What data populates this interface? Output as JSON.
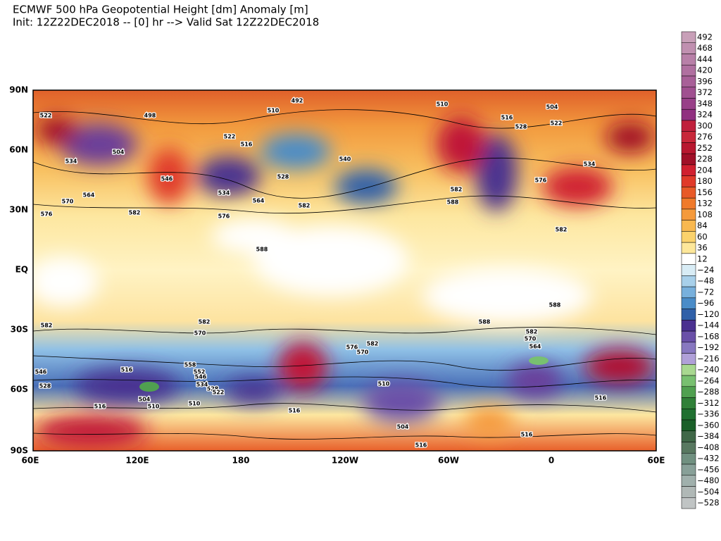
{
  "header": {
    "title": "ECMWF 500 hPa Geopotential Height [dm] Anomaly [m]",
    "subtitle": "Init: 12Z22DEC2018 -- [0] hr --> Valid Sat 12Z22DEC2018"
  },
  "map": {
    "lat_labels": [
      "90N",
      "60N",
      "30N",
      "EQ",
      "30S",
      "60S",
      "90S"
    ],
    "lon_labels": [
      "60E",
      "120E",
      "180",
      "120W",
      "60W",
      "0",
      "60E"
    ],
    "contour_labels": [
      "492",
      "510",
      "510",
      "504",
      "522",
      "516",
      "528",
      "498",
      "522",
      "522",
      "516",
      "528",
      "540",
      "534",
      "564",
      "582",
      "576",
      "582",
      "570",
      "564",
      "576",
      "534",
      "504",
      "546",
      "582",
      "588",
      "576",
      "534",
      "582",
      "588",
      "588",
      "588",
      "582",
      "570",
      "582",
      "576",
      "570",
      "516",
      "510",
      "528",
      "522",
      "504",
      "510",
      "510",
      "516",
      "516",
      "504",
      "516",
      "516",
      "516",
      "528",
      "546",
      "582",
      "582",
      "570",
      "564",
      "558",
      "552",
      "546",
      "534"
    ]
  },
  "colorbar": {
    "labels": [
      "492",
      "468",
      "444",
      "420",
      "396",
      "372",
      "348",
      "324",
      "300",
      "276",
      "252",
      "228",
      "204",
      "180",
      "156",
      "132",
      "108",
      "84",
      "60",
      "36",
      "12",
      "−24",
      "−48",
      "−72",
      "−96",
      "−120",
      "−144",
      "−168",
      "−192",
      "−216",
      "−240",
      "−264",
      "−288",
      "−312",
      "−336",
      "−360",
      "−384",
      "−408",
      "−432",
      "−456",
      "−480",
      "−504",
      "−528"
    ],
    "colors": [
      "#c8a0b8",
      "#c090b0",
      "#b880a8",
      "#b070a0",
      "#a86098",
      "#a05090",
      "#984088",
      "#903080",
      "#c0203c",
      "#c8283a",
      "#b81830",
      "#a01028",
      "#d02030",
      "#e03a2a",
      "#e85a28",
      "#f07a2a",
      "#f59a3c",
      "#f8b850",
      "#fbd26c",
      "#fde79a",
      "#ffffff",
      "#d8ecf5",
      "#a8d0ea",
      "#78b0dc",
      "#4a8cc8",
      "#3060a8",
      "#4a3090",
      "#6a50a8",
      "#8878c0",
      "#b0a0d8",
      "#a8d890",
      "#78c070",
      "#50a050",
      "#308038",
      "#207030",
      "#1a6028",
      "#406848",
      "#587860",
      "#709080",
      "#88a098",
      "#a0b0ac",
      "#b0b8b6",
      "#c0c4c4"
    ]
  }
}
